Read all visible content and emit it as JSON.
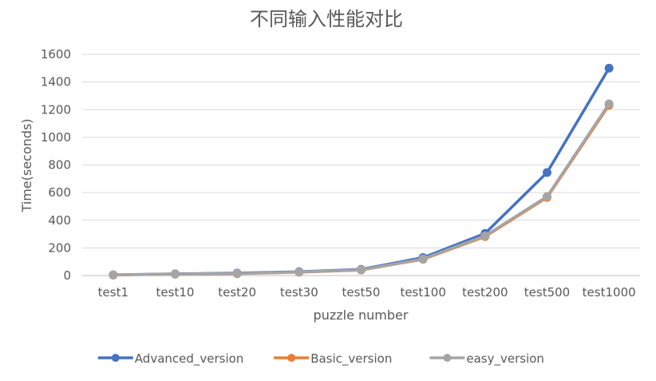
{
  "chart_data": {
    "type": "line",
    "title": "不同输入性能对比",
    "xlabel": "puzzle number",
    "ylabel": "Time(seconds)",
    "categories": [
      "test1",
      "test10",
      "test20",
      "test30",
      "test50",
      "test100",
      "test200",
      "test500",
      "test1000"
    ],
    "ylim": [
      0,
      1600
    ],
    "yticks": [
      0,
      200,
      400,
      600,
      800,
      1000,
      1200,
      1400,
      1600
    ],
    "grid": true,
    "legend_position": "bottom",
    "series": [
      {
        "name": "Advanced_version",
        "color": "#4472c4",
        "values": [
          5,
          12,
          18,
          28,
          45,
          130,
          305,
          745,
          1500
        ]
      },
      {
        "name": "Basic_version",
        "color": "#ed7d31",
        "values": [
          4,
          10,
          14,
          24,
          40,
          118,
          282,
          565,
          1232
        ]
      },
      {
        "name": "easy_version",
        "color": "#a5a5a5",
        "values": [
          4,
          10,
          15,
          25,
          41,
          120,
          287,
          572,
          1242
        ]
      }
    ]
  }
}
